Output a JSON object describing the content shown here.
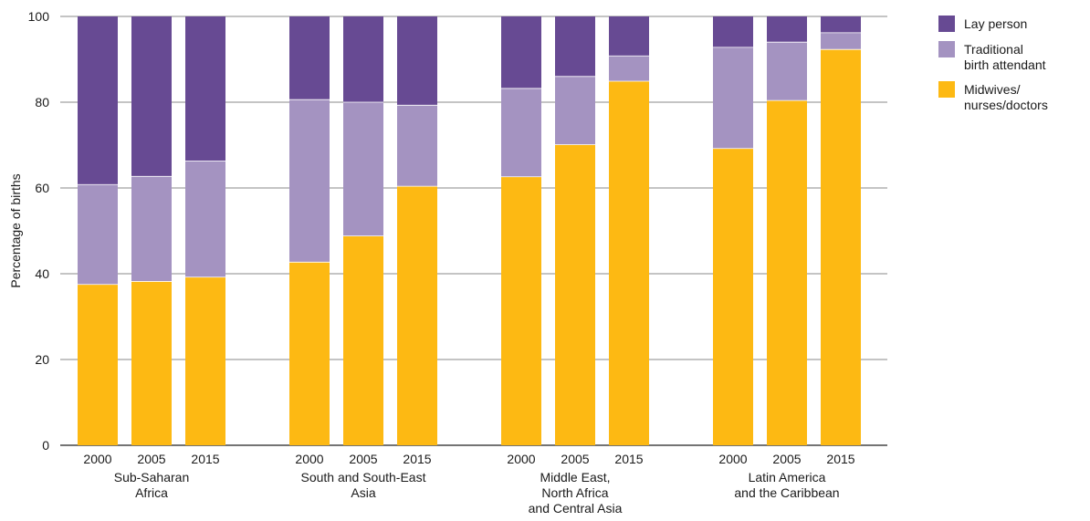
{
  "chart_data": {
    "type": "bar",
    "stacked": true,
    "ylabel": "Percentage of births",
    "ylim": [
      0,
      100
    ],
    "yticks": [
      0,
      20,
      40,
      60,
      80,
      100
    ],
    "grid": true,
    "legend_position": "top-right",
    "groups": [
      {
        "label_lines": [
          "Sub-Saharan",
          "Africa"
        ],
        "years": [
          "2000",
          "2005",
          "2015"
        ]
      },
      {
        "label_lines": [
          "South and South-East",
          "Asia"
        ],
        "years": [
          "2000",
          "2005",
          "2015"
        ]
      },
      {
        "label_lines": [
          "Middle East,",
          "North Africa",
          "and Central Asia"
        ],
        "years": [
          "2000",
          "2005",
          "2015"
        ]
      },
      {
        "label_lines": [
          "Latin America",
          "and the Caribbean"
        ],
        "years": [
          "2000",
          "2005",
          "2015"
        ]
      }
    ],
    "series": [
      {
        "name_lines": [
          "Midwives/",
          "nurses/doctors"
        ],
        "color": "#FDB913",
        "values": [
          37.5,
          38.2,
          39.2,
          42.7,
          48.8,
          60.4,
          62.6,
          70.1,
          84.9,
          69.2,
          80.4,
          92.3
        ]
      },
      {
        "name_lines": [
          "Traditional",
          "birth attendant"
        ],
        "color": "#A493C1",
        "values": [
          23.3,
          24.5,
          27.1,
          37.9,
          31.2,
          18.9,
          20.6,
          15.9,
          5.9,
          23.6,
          13.6,
          3.9
        ]
      },
      {
        "name_lines": [
          "Lay person"
        ],
        "color": "#674A93",
        "values": [
          39.2,
          37.3,
          33.7,
          19.4,
          20.0,
          20.7,
          16.8,
          14.0,
          9.2,
          7.2,
          6.0,
          3.8
        ]
      }
    ],
    "legend_order": [
      2,
      1,
      0
    ]
  }
}
